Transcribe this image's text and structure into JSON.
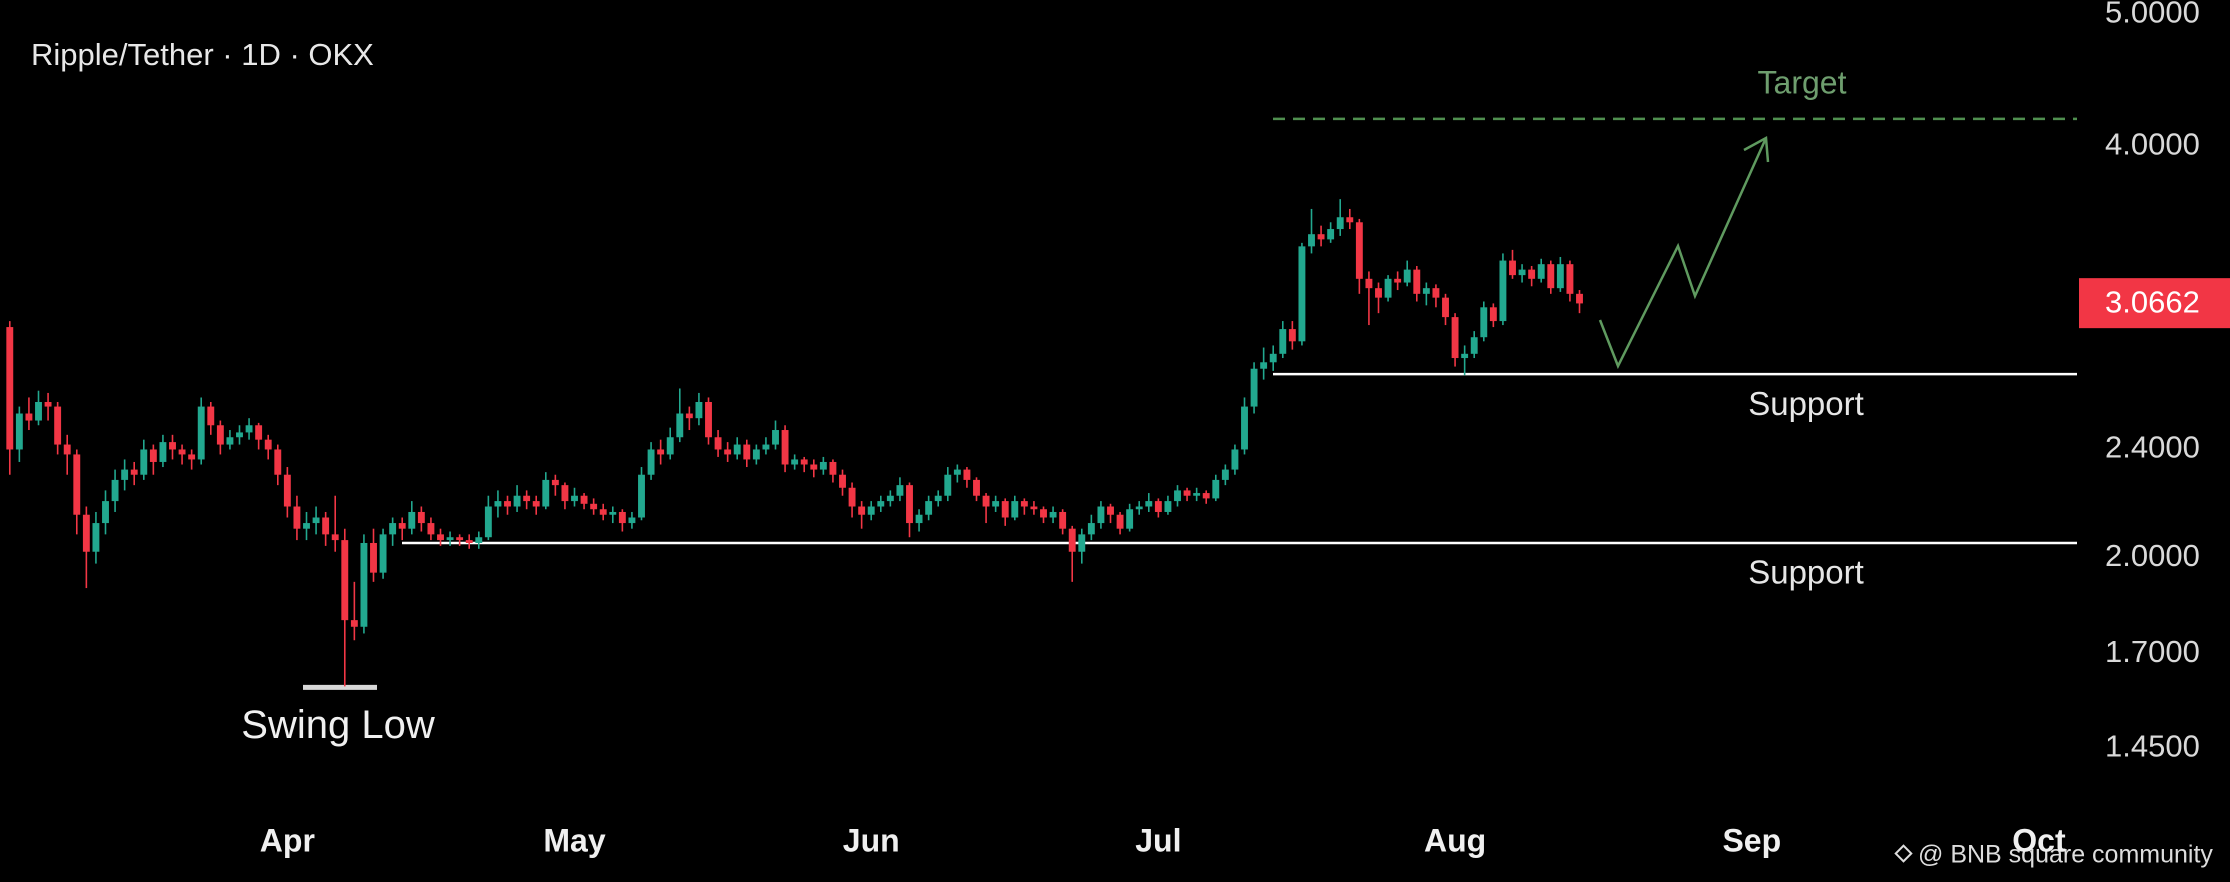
{
  "chart_data": {
    "type": "candlestick",
    "title": "Ripple/Tether · 1D · OKX",
    "watermark": "@ BNB square community",
    "log_scale": true,
    "grid": false,
    "up_color": "#22a88f",
    "down_color": "#f23645",
    "ylim": [
      1.307,
      5.12
    ],
    "yticks": [
      {
        "value": 1.45,
        "label": "1.4500"
      },
      {
        "value": 1.7,
        "label": "1.7000"
      },
      {
        "value": 2,
        "label": "2.0000"
      },
      {
        "value": 2.4,
        "label": "2.4000"
      },
      {
        "value": 4,
        "label": "4.0000"
      },
      {
        "value": 5,
        "label": "5.0000"
      }
    ],
    "last_price": 3.0662,
    "annotations": {
      "target": {
        "label": "Target",
        "price": 4.19
      },
      "supports": [
        {
          "label": "Support",
          "price": 2.725
        },
        {
          "label": "Support",
          "price": 2.05
        }
      ],
      "swing_low": {
        "label": "Swing Low",
        "price": 1.61
      }
    },
    "categories": [
      null,
      null,
      null,
      null,
      null,
      null,
      null,
      null,
      null,
      null,
      null,
      null,
      null,
      null,
      null,
      null,
      null,
      null,
      null,
      null,
      null,
      null,
      null,
      null,
      null,
      null,
      null,
      null,
      null,
      "Apr",
      null,
      null,
      null,
      null,
      null,
      null,
      null,
      null,
      null,
      null,
      null,
      null,
      null,
      null,
      null,
      null,
      null,
      null,
      null,
      null,
      null,
      null,
      null,
      null,
      null,
      null,
      null,
      null,
      null,
      "May",
      null,
      null,
      null,
      null,
      null,
      null,
      null,
      null,
      null,
      null,
      null,
      null,
      null,
      null,
      null,
      null,
      null,
      null,
      null,
      null,
      null,
      null,
      null,
      null,
      null,
      null,
      null,
      null,
      null,
      null,
      "Jun",
      null,
      null,
      null,
      null,
      null,
      null,
      null,
      null,
      null,
      null,
      null,
      null,
      null,
      null,
      null,
      null,
      null,
      null,
      null,
      null,
      null,
      null,
      null,
      null,
      null,
      null,
      null,
      null,
      null,
      "Jul",
      null,
      null,
      null,
      null,
      null,
      null,
      null,
      null,
      null,
      null,
      null,
      null,
      null,
      null,
      null,
      null,
      null,
      null,
      null,
      null,
      null,
      null,
      null,
      null,
      null,
      null,
      null,
      null,
      null,
      null,
      "Aug",
      null,
      null,
      null,
      null,
      null,
      null,
      null,
      null,
      null,
      null,
      null,
      null,
      null,
      null,
      null,
      null,
      null,
      null,
      null,
      null,
      null,
      null,
      null,
      null,
      null,
      null,
      null,
      null,
      null,
      null,
      "Sep",
      null,
      null,
      null,
      null,
      null,
      null,
      null,
      null,
      null,
      null,
      null,
      null,
      null,
      null,
      null,
      null,
      null,
      null,
      null,
      null,
      null,
      null,
      null,
      null,
      null,
      null,
      null,
      null,
      null,
      "Oct",
      null,
      null,
      null,
      null
    ],
    "candles": [
      [
        2.95,
        2.98,
        2.3,
        2.4
      ],
      [
        2.4,
        2.58,
        2.35,
        2.55
      ],
      [
        2.55,
        2.62,
        2.48,
        2.52
      ],
      [
        2.52,
        2.65,
        2.5,
        2.6
      ],
      [
        2.6,
        2.64,
        2.52,
        2.58
      ],
      [
        2.58,
        2.6,
        2.38,
        2.42
      ],
      [
        2.42,
        2.46,
        2.3,
        2.38
      ],
      [
        2.38,
        2.4,
        2.08,
        2.15
      ],
      [
        2.15,
        2.18,
        1.9,
        2.02
      ],
      [
        2.02,
        2.16,
        1.98,
        2.12
      ],
      [
        2.12,
        2.24,
        2.08,
        2.2
      ],
      [
        2.2,
        2.32,
        2.16,
        2.28
      ],
      [
        2.28,
        2.36,
        2.24,
        2.32
      ],
      [
        2.32,
        2.35,
        2.26,
        2.3
      ],
      [
        2.3,
        2.44,
        2.28,
        2.4
      ],
      [
        2.4,
        2.42,
        2.3,
        2.35
      ],
      [
        2.35,
        2.46,
        2.33,
        2.43
      ],
      [
        2.43,
        2.46,
        2.36,
        2.4
      ],
      [
        2.4,
        2.42,
        2.34,
        2.38
      ],
      [
        2.38,
        2.4,
        2.32,
        2.36
      ],
      [
        2.36,
        2.62,
        2.34,
        2.58
      ],
      [
        2.58,
        2.6,
        2.46,
        2.5
      ],
      [
        2.5,
        2.52,
        2.38,
        2.42
      ],
      [
        2.42,
        2.48,
        2.4,
        2.45
      ],
      [
        2.45,
        2.5,
        2.42,
        2.47
      ],
      [
        2.47,
        2.53,
        2.44,
        2.5
      ],
      [
        2.5,
        2.51,
        2.4,
        2.44
      ],
      [
        2.44,
        2.46,
        2.36,
        2.4
      ],
      [
        2.4,
        2.42,
        2.26,
        2.3
      ],
      [
        2.3,
        2.33,
        2.14,
        2.18
      ],
      [
        2.18,
        2.22,
        2.06,
        2.1
      ],
      [
        2.1,
        2.16,
        2.06,
        2.12
      ],
      [
        2.12,
        2.18,
        2.08,
        2.14
      ],
      [
        2.14,
        2.16,
        2.04,
        2.08
      ],
      [
        2.08,
        2.22,
        2.02,
        2.06
      ],
      [
        2.06,
        2.1,
        1.61,
        1.8
      ],
      [
        1.8,
        1.92,
        1.74,
        1.78
      ],
      [
        1.78,
        2.08,
        1.76,
        2.05
      ],
      [
        2.05,
        2.1,
        1.92,
        1.95
      ],
      [
        1.95,
        2.1,
        1.93,
        2.08
      ],
      [
        2.08,
        2.14,
        2.04,
        2.12
      ],
      [
        2.12,
        2.14,
        2.06,
        2.1
      ],
      [
        2.1,
        2.2,
        2.08,
        2.16
      ],
      [
        2.16,
        2.18,
        2.09,
        2.12
      ],
      [
        2.12,
        2.14,
        2.06,
        2.08
      ],
      [
        2.08,
        2.1,
        2.04,
        2.06
      ],
      [
        2.06,
        2.09,
        2.04,
        2.07
      ],
      [
        2.07,
        2.08,
        2.04,
        2.06
      ],
      [
        2.06,
        2.08,
        2.03,
        2.05
      ],
      [
        2.05,
        2.09,
        2.03,
        2.07
      ],
      [
        2.07,
        2.22,
        2.06,
        2.18
      ],
      [
        2.18,
        2.24,
        2.14,
        2.2
      ],
      [
        2.2,
        2.22,
        2.15,
        2.18
      ],
      [
        2.18,
        2.26,
        2.16,
        2.22
      ],
      [
        2.22,
        2.24,
        2.17,
        2.2
      ],
      [
        2.2,
        2.22,
        2.15,
        2.18
      ],
      [
        2.18,
        2.31,
        2.17,
        2.28
      ],
      [
        2.28,
        2.3,
        2.22,
        2.26
      ],
      [
        2.26,
        2.27,
        2.17,
        2.2
      ],
      [
        2.2,
        2.25,
        2.18,
        2.22
      ],
      [
        2.22,
        2.23,
        2.17,
        2.19
      ],
      [
        2.19,
        2.21,
        2.15,
        2.17
      ],
      [
        2.17,
        2.19,
        2.13,
        2.15
      ],
      [
        2.15,
        2.18,
        2.12,
        2.16
      ],
      [
        2.16,
        2.17,
        2.09,
        2.12
      ],
      [
        2.12,
        2.16,
        2.1,
        2.14
      ],
      [
        2.14,
        2.33,
        2.13,
        2.3
      ],
      [
        2.3,
        2.43,
        2.28,
        2.4
      ],
      [
        2.4,
        2.44,
        2.34,
        2.38
      ],
      [
        2.38,
        2.49,
        2.36,
        2.45
      ],
      [
        2.45,
        2.66,
        2.43,
        2.55
      ],
      [
        2.55,
        2.58,
        2.48,
        2.53
      ],
      [
        2.53,
        2.64,
        2.5,
        2.6
      ],
      [
        2.6,
        2.62,
        2.42,
        2.45
      ],
      [
        2.45,
        2.48,
        2.37,
        2.4
      ],
      [
        2.4,
        2.43,
        2.35,
        2.38
      ],
      [
        2.38,
        2.45,
        2.36,
        2.42
      ],
      [
        2.42,
        2.44,
        2.33,
        2.36
      ],
      [
        2.36,
        2.42,
        2.34,
        2.4
      ],
      [
        2.4,
        2.45,
        2.38,
        2.42
      ],
      [
        2.42,
        2.52,
        2.4,
        2.48
      ],
      [
        2.48,
        2.5,
        2.31,
        2.34
      ],
      [
        2.34,
        2.38,
        2.32,
        2.36
      ],
      [
        2.36,
        2.37,
        2.31,
        2.34
      ],
      [
        2.34,
        2.36,
        2.29,
        2.32
      ],
      [
        2.32,
        2.37,
        2.3,
        2.35
      ],
      [
        2.35,
        2.36,
        2.27,
        2.3
      ],
      [
        2.3,
        2.32,
        2.22,
        2.25
      ],
      [
        2.25,
        2.27,
        2.14,
        2.18
      ],
      [
        2.18,
        2.2,
        2.1,
        2.15
      ],
      [
        2.15,
        2.2,
        2.13,
        2.18
      ],
      [
        2.18,
        2.22,
        2.16,
        2.2
      ],
      [
        2.2,
        2.24,
        2.18,
        2.22
      ],
      [
        2.22,
        2.29,
        2.2,
        2.26
      ],
      [
        2.26,
        2.27,
        2.07,
        2.12
      ],
      [
        2.12,
        2.17,
        2.09,
        2.15
      ],
      [
        2.15,
        2.22,
        2.13,
        2.2
      ],
      [
        2.2,
        2.24,
        2.18,
        2.22
      ],
      [
        2.22,
        2.33,
        2.2,
        2.3
      ],
      [
        2.3,
        2.34,
        2.27,
        2.32
      ],
      [
        2.32,
        2.33,
        2.25,
        2.28
      ],
      [
        2.28,
        2.29,
        2.2,
        2.22
      ],
      [
        2.22,
        2.23,
        2.12,
        2.18
      ],
      [
        2.18,
        2.22,
        2.16,
        2.2
      ],
      [
        2.2,
        2.21,
        2.11,
        2.14
      ],
      [
        2.14,
        2.22,
        2.13,
        2.2
      ],
      [
        2.2,
        2.21,
        2.15,
        2.18
      ],
      [
        2.18,
        2.2,
        2.15,
        2.17
      ],
      [
        2.17,
        2.18,
        2.12,
        2.14
      ],
      [
        2.14,
        2.18,
        2.12,
        2.16
      ],
      [
        2.16,
        2.17,
        2.08,
        2.1
      ],
      [
        2.1,
        2.11,
        1.92,
        2.02
      ],
      [
        2.02,
        2.1,
        1.98,
        2.08
      ],
      [
        2.08,
        2.15,
        2.06,
        2.12
      ],
      [
        2.12,
        2.2,
        2.1,
        2.18
      ],
      [
        2.18,
        2.19,
        2.12,
        2.15
      ],
      [
        2.15,
        2.16,
        2.08,
        2.1
      ],
      [
        2.1,
        2.19,
        2.09,
        2.17
      ],
      [
        2.17,
        2.2,
        2.15,
        2.18
      ],
      [
        2.18,
        2.23,
        2.16,
        2.2
      ],
      [
        2.2,
        2.21,
        2.14,
        2.16
      ],
      [
        2.16,
        2.22,
        2.15,
        2.2
      ],
      [
        2.2,
        2.26,
        2.18,
        2.24
      ],
      [
        2.24,
        2.25,
        2.2,
        2.22
      ],
      [
        2.22,
        2.25,
        2.2,
        2.23
      ],
      [
        2.23,
        2.24,
        2.19,
        2.21
      ],
      [
        2.21,
        2.3,
        2.2,
        2.28
      ],
      [
        2.28,
        2.34,
        2.26,
        2.32
      ],
      [
        2.32,
        2.42,
        2.3,
        2.4
      ],
      [
        2.4,
        2.62,
        2.38,
        2.58
      ],
      [
        2.58,
        2.78,
        2.55,
        2.75
      ],
      [
        2.75,
        2.85,
        2.7,
        2.78
      ],
      [
        2.78,
        2.86,
        2.74,
        2.82
      ],
      [
        2.82,
        2.98,
        2.8,
        2.94
      ],
      [
        2.94,
        2.98,
        2.84,
        2.88
      ],
      [
        2.88,
        3.4,
        2.86,
        3.38
      ],
      [
        3.38,
        3.6,
        3.34,
        3.45
      ],
      [
        3.45,
        3.5,
        3.38,
        3.42
      ],
      [
        3.42,
        3.52,
        3.4,
        3.48
      ],
      [
        3.48,
        3.66,
        3.44,
        3.55
      ],
      [
        3.55,
        3.6,
        3.48,
        3.52
      ],
      [
        3.52,
        3.54,
        3.12,
        3.2
      ],
      [
        3.2,
        3.24,
        2.96,
        3.15
      ],
      [
        3.15,
        3.18,
        3.02,
        3.1
      ],
      [
        3.1,
        3.22,
        3.08,
        3.2
      ],
      [
        3.2,
        3.24,
        3.14,
        3.18
      ],
      [
        3.18,
        3.3,
        3.16,
        3.25
      ],
      [
        3.25,
        3.27,
        3.08,
        3.12
      ],
      [
        3.12,
        3.18,
        3.06,
        3.15
      ],
      [
        3.15,
        3.17,
        3.05,
        3.1
      ],
      [
        3.1,
        3.12,
        2.96,
        3.0
      ],
      [
        3.0,
        3.02,
        2.76,
        2.8
      ],
      [
        2.8,
        2.86,
        2.72,
        2.82
      ],
      [
        2.82,
        2.93,
        2.8,
        2.9
      ],
      [
        2.9,
        3.08,
        2.88,
        3.05
      ],
      [
        3.05,
        3.07,
        2.95,
        2.98
      ],
      [
        2.98,
        3.34,
        2.96,
        3.3
      ],
      [
        3.3,
        3.36,
        3.2,
        3.22
      ],
      [
        3.22,
        3.28,
        3.18,
        3.25
      ],
      [
        3.25,
        3.27,
        3.16,
        3.2
      ],
      [
        3.2,
        3.31,
        3.18,
        3.28
      ],
      [
        3.28,
        3.3,
        3.12,
        3.15
      ],
      [
        3.15,
        3.32,
        3.13,
        3.28
      ],
      [
        3.28,
        3.3,
        3.08,
        3.12
      ],
      [
        3.12,
        3.14,
        3.02,
        3.07
      ],
      null,
      null,
      null,
      null,
      null,
      null,
      null,
      null,
      null,
      null,
      null,
      null,
      null,
      null,
      null,
      null,
      null,
      null,
      null,
      null,
      null,
      null,
      null,
      null,
      null,
      null,
      null,
      null,
      null,
      null,
      null,
      null,
      null,
      null,
      null,
      null,
      null,
      null,
      null,
      null,
      null,
      null,
      null,
      null,
      null,
      null,
      null,
      null,
      null,
      null,
      null,
      null
    ]
  }
}
